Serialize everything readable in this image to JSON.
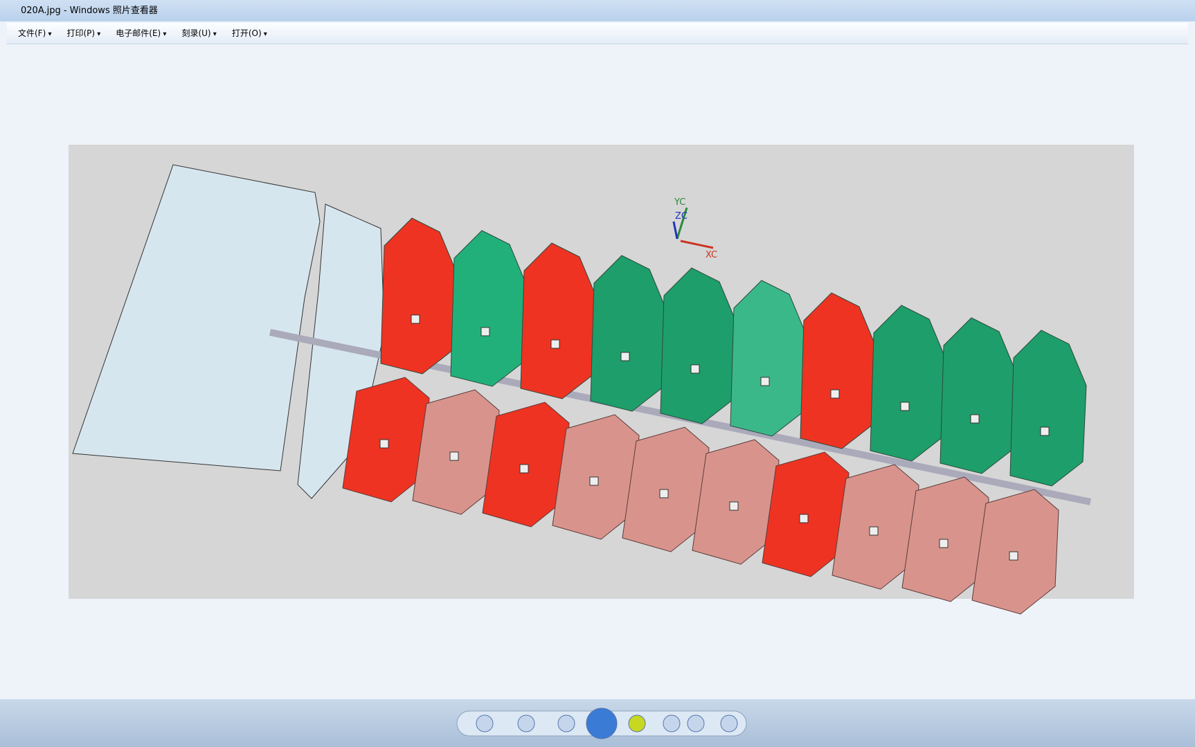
{
  "window": {
    "title": "020A.jpg - Windows 照片查看器"
  },
  "menu": [
    "文件(F)",
    "打印(P)",
    "电子邮件(E)",
    "刻录(U)",
    "打开(O)"
  ],
  "image": {
    "axes": {
      "y": "YC",
      "z": "ZC",
      "x": "XC"
    }
  }
}
